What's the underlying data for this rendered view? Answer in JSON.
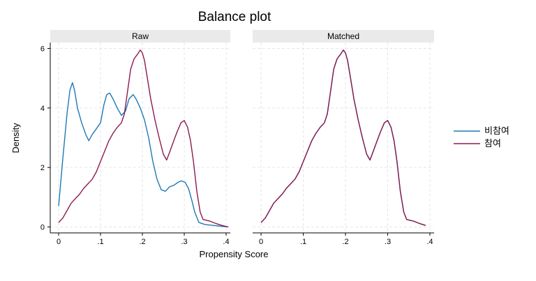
{
  "chart_data": {
    "type": "line",
    "title": "Balance plot",
    "xlabel": "Propensity Score",
    "ylabel": "Density",
    "xlim": [
      -0.02,
      0.41
    ],
    "ylim": [
      -0.2,
      6.2
    ],
    "x_ticks": [
      0,
      0.1,
      0.2,
      0.3,
      0.4
    ],
    "x_tick_labels": [
      "0",
      ".1",
      ".2",
      ".3",
      ".4"
    ],
    "y_ticks": [
      0,
      2,
      4,
      6
    ],
    "y_tick_labels": [
      "0",
      "2",
      "4",
      "6"
    ],
    "grid": true,
    "legend_position": "right",
    "panels": [
      {
        "label": "Raw",
        "series": [
          {
            "name": "비참여",
            "color": "#1f78b4",
            "points": [
              [
                0.0,
                0.7
              ],
              [
                0.01,
                2.3
              ],
              [
                0.02,
                3.8
              ],
              [
                0.027,
                4.6
              ],
              [
                0.033,
                4.85
              ],
              [
                0.038,
                4.6
              ],
              [
                0.045,
                4.0
              ],
              [
                0.055,
                3.5
              ],
              [
                0.065,
                3.1
              ],
              [
                0.072,
                2.9
              ],
              [
                0.08,
                3.1
              ],
              [
                0.09,
                3.3
              ],
              [
                0.1,
                3.5
              ],
              [
                0.108,
                4.1
              ],
              [
                0.115,
                4.45
              ],
              [
                0.122,
                4.5
              ],
              [
                0.13,
                4.3
              ],
              [
                0.14,
                4.0
              ],
              [
                0.15,
                3.75
              ],
              [
                0.16,
                3.9
              ],
              [
                0.168,
                4.3
              ],
              [
                0.178,
                4.45
              ],
              [
                0.185,
                4.3
              ],
              [
                0.195,
                4.0
              ],
              [
                0.205,
                3.6
              ],
              [
                0.215,
                3.0
              ],
              [
                0.225,
                2.2
              ],
              [
                0.235,
                1.6
              ],
              [
                0.245,
                1.25
              ],
              [
                0.255,
                1.2
              ],
              [
                0.265,
                1.35
              ],
              [
                0.275,
                1.4
              ],
              [
                0.285,
                1.5
              ],
              [
                0.293,
                1.55
              ],
              [
                0.302,
                1.5
              ],
              [
                0.31,
                1.3
              ],
              [
                0.318,
                0.9
              ],
              [
                0.325,
                0.5
              ],
              [
                0.335,
                0.15
              ],
              [
                0.35,
                0.08
              ],
              [
                0.37,
                0.05
              ],
              [
                0.39,
                0.02
              ],
              [
                0.405,
                0.0
              ]
            ]
          },
          {
            "name": "참여",
            "color": "#8b1a4f",
            "points": [
              [
                0.0,
                0.15
              ],
              [
                0.01,
                0.3
              ],
              [
                0.02,
                0.55
              ],
              [
                0.03,
                0.8
              ],
              [
                0.04,
                0.95
              ],
              [
                0.05,
                1.1
              ],
              [
                0.06,
                1.3
              ],
              [
                0.07,
                1.45
              ],
              [
                0.08,
                1.6
              ],
              [
                0.09,
                1.85
              ],
              [
                0.1,
                2.2
              ],
              [
                0.11,
                2.55
              ],
              [
                0.12,
                2.9
              ],
              [
                0.13,
                3.15
              ],
              [
                0.14,
                3.35
              ],
              [
                0.15,
                3.5
              ],
              [
                0.157,
                3.8
              ],
              [
                0.165,
                4.6
              ],
              [
                0.172,
                5.3
              ],
              [
                0.18,
                5.65
              ],
              [
                0.188,
                5.8
              ],
              [
                0.195,
                5.95
              ],
              [
                0.2,
                5.85
              ],
              [
                0.205,
                5.6
              ],
              [
                0.212,
                5.0
              ],
              [
                0.22,
                4.3
              ],
              [
                0.23,
                3.6
              ],
              [
                0.24,
                3.0
              ],
              [
                0.25,
                2.45
              ],
              [
                0.258,
                2.25
              ],
              [
                0.266,
                2.55
              ],
              [
                0.275,
                2.9
              ],
              [
                0.283,
                3.2
              ],
              [
                0.292,
                3.5
              ],
              [
                0.3,
                3.58
              ],
              [
                0.308,
                3.35
              ],
              [
                0.315,
                2.9
              ],
              [
                0.322,
                2.2
              ],
              [
                0.33,
                1.2
              ],
              [
                0.338,
                0.5
              ],
              [
                0.345,
                0.25
              ],
              [
                0.36,
                0.2
              ],
              [
                0.375,
                0.12
              ],
              [
                0.39,
                0.05
              ],
              [
                0.405,
                0.0
              ]
            ]
          }
        ]
      },
      {
        "label": "Matched",
        "series": [
          {
            "name": "비참여",
            "color": "#1f78b4",
            "points": [
              [
                0.0,
                0.15
              ],
              [
                0.01,
                0.3
              ],
              [
                0.02,
                0.55
              ],
              [
                0.03,
                0.8
              ],
              [
                0.04,
                0.95
              ],
              [
                0.05,
                1.1
              ],
              [
                0.06,
                1.3
              ],
              [
                0.07,
                1.45
              ],
              [
                0.08,
                1.6
              ],
              [
                0.09,
                1.85
              ],
              [
                0.1,
                2.2
              ],
              [
                0.11,
                2.55
              ],
              [
                0.12,
                2.9
              ],
              [
                0.13,
                3.15
              ],
              [
                0.14,
                3.35
              ],
              [
                0.15,
                3.5
              ],
              [
                0.157,
                3.8
              ],
              [
                0.165,
                4.6
              ],
              [
                0.172,
                5.3
              ],
              [
                0.18,
                5.65
              ],
              [
                0.188,
                5.8
              ],
              [
                0.195,
                5.95
              ],
              [
                0.2,
                5.85
              ],
              [
                0.205,
                5.6
              ],
              [
                0.212,
                5.0
              ],
              [
                0.22,
                4.3
              ],
              [
                0.23,
                3.6
              ],
              [
                0.24,
                3.0
              ],
              [
                0.25,
                2.45
              ],
              [
                0.258,
                2.25
              ],
              [
                0.266,
                2.55
              ],
              [
                0.275,
                2.9
              ],
              [
                0.283,
                3.2
              ],
              [
                0.292,
                3.5
              ],
              [
                0.3,
                3.58
              ],
              [
                0.308,
                3.35
              ],
              [
                0.315,
                2.9
              ],
              [
                0.322,
                2.2
              ],
              [
                0.33,
                1.2
              ],
              [
                0.338,
                0.5
              ],
              [
                0.345,
                0.25
              ],
              [
                0.36,
                0.2
              ],
              [
                0.375,
                0.12
              ],
              [
                0.39,
                0.05
              ]
            ]
          },
          {
            "name": "참여",
            "color": "#8b1a4f",
            "points": [
              [
                0.0,
                0.15
              ],
              [
                0.01,
                0.3
              ],
              [
                0.02,
                0.55
              ],
              [
                0.03,
                0.8
              ],
              [
                0.04,
                0.95
              ],
              [
                0.05,
                1.1
              ],
              [
                0.06,
                1.3
              ],
              [
                0.07,
                1.45
              ],
              [
                0.08,
                1.6
              ],
              [
                0.09,
                1.85
              ],
              [
                0.1,
                2.2
              ],
              [
                0.11,
                2.55
              ],
              [
                0.12,
                2.9
              ],
              [
                0.13,
                3.15
              ],
              [
                0.14,
                3.35
              ],
              [
                0.15,
                3.5
              ],
              [
                0.157,
                3.8
              ],
              [
                0.165,
                4.6
              ],
              [
                0.172,
                5.3
              ],
              [
                0.18,
                5.65
              ],
              [
                0.188,
                5.8
              ],
              [
                0.195,
                5.95
              ],
              [
                0.2,
                5.85
              ],
              [
                0.205,
                5.6
              ],
              [
                0.212,
                5.0
              ],
              [
                0.22,
                4.3
              ],
              [
                0.23,
                3.6
              ],
              [
                0.24,
                3.0
              ],
              [
                0.25,
                2.45
              ],
              [
                0.258,
                2.25
              ],
              [
                0.266,
                2.55
              ],
              [
                0.275,
                2.9
              ],
              [
                0.283,
                3.2
              ],
              [
                0.292,
                3.5
              ],
              [
                0.3,
                3.58
              ],
              [
                0.308,
                3.35
              ],
              [
                0.315,
                2.9
              ],
              [
                0.322,
                2.2
              ],
              [
                0.33,
                1.2
              ],
              [
                0.338,
                0.5
              ],
              [
                0.345,
                0.25
              ],
              [
                0.36,
                0.2
              ],
              [
                0.375,
                0.12
              ],
              [
                0.39,
                0.05
              ]
            ]
          }
        ]
      }
    ],
    "legend": [
      {
        "name": "비참여",
        "color": "#1f78b4"
      },
      {
        "name": "참여",
        "color": "#8b1a4f"
      }
    ]
  }
}
